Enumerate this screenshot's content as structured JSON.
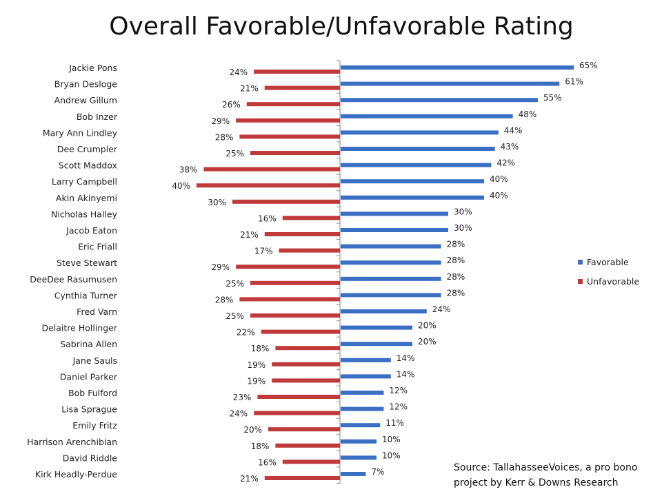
{
  "page": {
    "title": "Overall Favorable/Unfavorable Rating",
    "source": "Source: TallahasseeVoices, a pro bono project by Kerr & Downs Research"
  },
  "colors": {
    "favorable": "#3a6fc4",
    "unfavorable": "#c0393b",
    "axis": "#888888"
  },
  "legend": {
    "favorable_label": "Favorable",
    "unfavorable_label": "Unfavorable"
  },
  "chart_data": {
    "type": "bar",
    "orientation": "horizontal-diverging",
    "title": "Overall Favorable/Unfavorable Rating",
    "categories": [
      "Jackie Pons",
      "Bryan Desloge",
      "Andrew Gillum",
      "Bob Inzer",
      "Mary Ann Lindley",
      "Dee Crumpler",
      "Scott Maddox",
      "Larry Campbell",
      "Akin Akinyemi",
      "Nicholas Halley",
      "Jacob Eaton",
      "Eric Friall",
      "Steve Stewart",
      "DeeDee Rasumusen",
      "Cynthia Turner",
      "Fred Varn",
      "Delaitre Hollinger",
      "Sabrina Allen",
      "Jane Sauls",
      "Daniel Parker",
      "Bob Fulford",
      "Lisa Sprague",
      "Emily Fritz",
      "Harrison Arenchibian",
      "David Riddle",
      "Kirk Headly-Perdue"
    ],
    "series": [
      {
        "name": "Favorable",
        "values": [
          65,
          61,
          55,
          48,
          44,
          43,
          42,
          40,
          40,
          30,
          30,
          28,
          28,
          28,
          28,
          24,
          20,
          20,
          14,
          14,
          12,
          12,
          11,
          10,
          10,
          7
        ]
      },
      {
        "name": "Unfavorable",
        "values": [
          24,
          21,
          26,
          29,
          28,
          25,
          38,
          40,
          30,
          16,
          21,
          17,
          29,
          25,
          28,
          25,
          22,
          18,
          19,
          19,
          23,
          24,
          20,
          18,
          16,
          21
        ]
      }
    ],
    "value_format": "percent",
    "legend_position": "right",
    "grid": false
  }
}
